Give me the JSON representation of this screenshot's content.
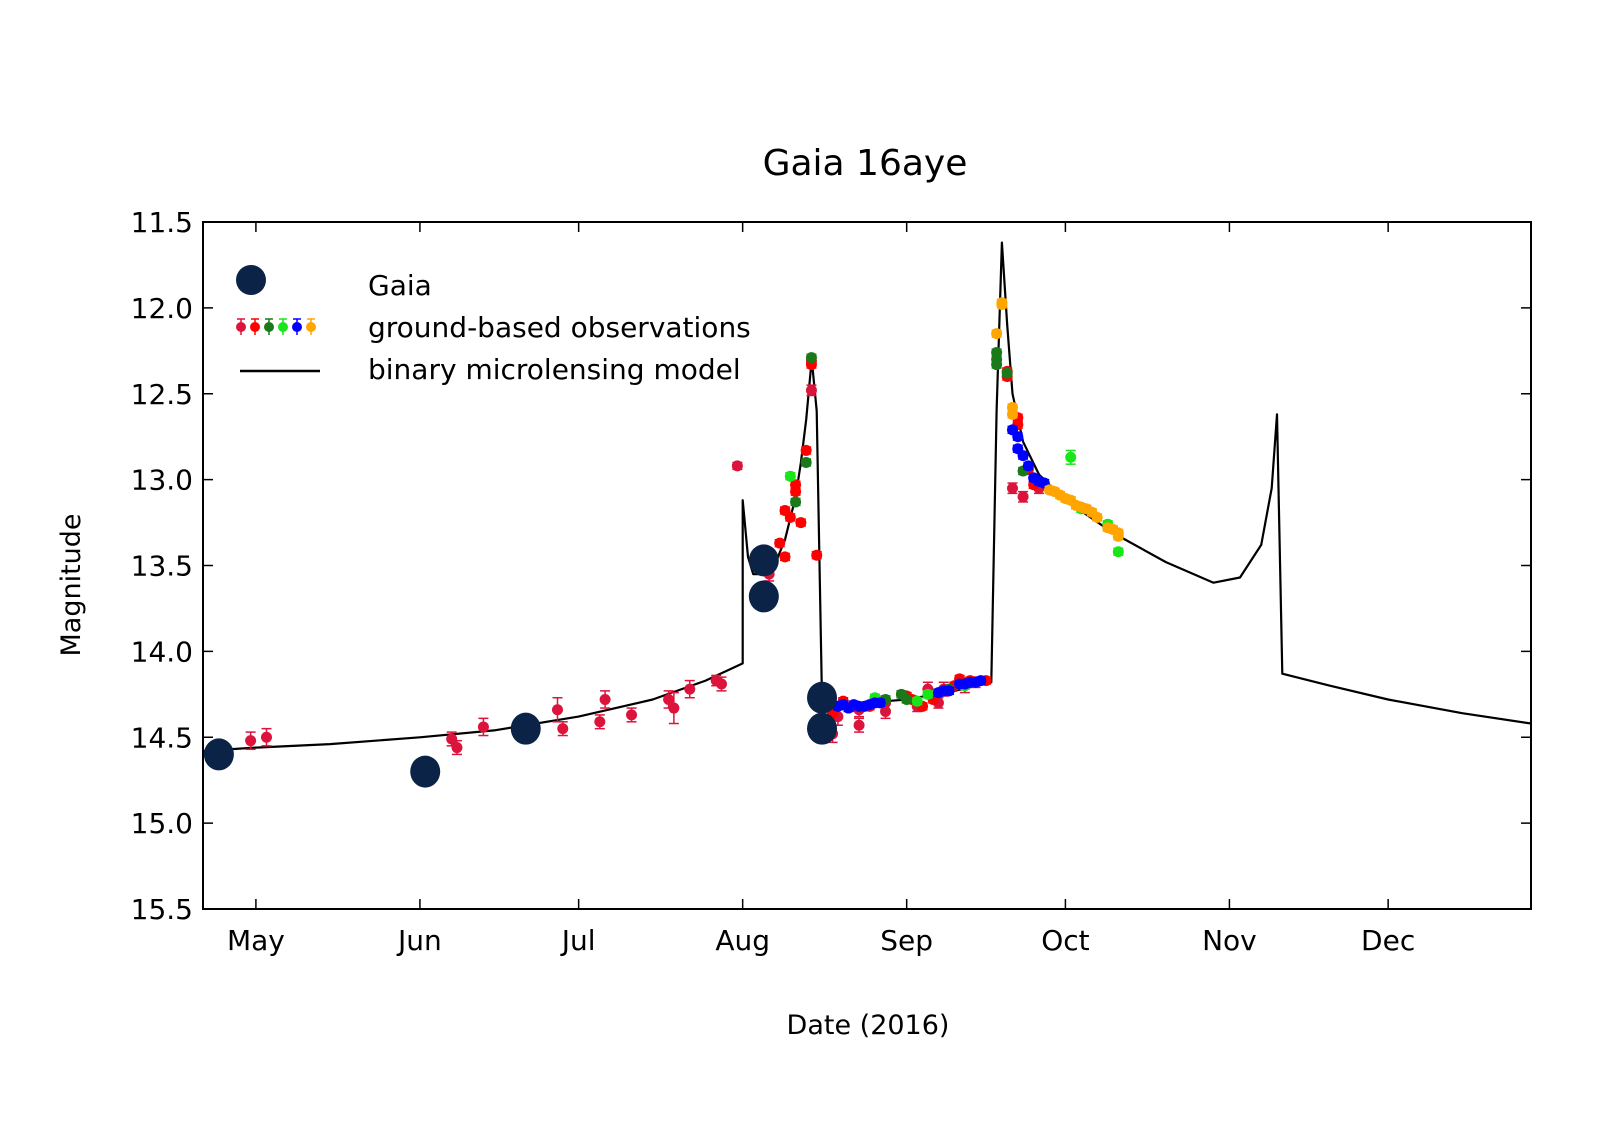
{
  "chart_data": {
    "type": "scatter",
    "title": "Gaia 16aye",
    "xlabel": "Date (2016)",
    "ylabel": "Magnitude",
    "x_axis": "date",
    "xlim": [
      "2016-04-21",
      "2016-12-28"
    ],
    "ylim": [
      15.5,
      11.5
    ],
    "y_inverted": true,
    "grid": false,
    "legend_position": "top-left",
    "x_ticks": [
      {
        "date": "2016-05-01",
        "label": "May"
      },
      {
        "date": "2016-06-01",
        "label": "Jun"
      },
      {
        "date": "2016-07-01",
        "label": "Jul"
      },
      {
        "date": "2016-08-01",
        "label": "Aug"
      },
      {
        "date": "2016-09-01",
        "label": "Sep"
      },
      {
        "date": "2016-10-01",
        "label": "Oct"
      },
      {
        "date": "2016-11-01",
        "label": "Nov"
      },
      {
        "date": "2016-12-01",
        "label": "Dec"
      }
    ],
    "y_ticks": [
      "11.5",
      "12.0",
      "12.5",
      "13.0",
      "13.5",
      "14.0",
      "14.5",
      "15.0",
      "15.5"
    ],
    "legend": {
      "gaia_label": "Gaia",
      "ground_label": "ground-based observations",
      "model_label": "binary microlensing model"
    },
    "colors": {
      "gaia": "#0b2347",
      "crimson": "#dc143c",
      "red": "#ff0000",
      "darkgreen": "#1a7a1a",
      "lime": "#19e619",
      "blue": "#0000ff",
      "orange": "#ffa500",
      "model": "#000000"
    },
    "series": [
      {
        "key": "gaia",
        "points": [
          [
            "2016-04-24",
            14.6,
            0.06
          ],
          [
            "2016-06-02",
            14.7,
            0.06
          ],
          [
            "2016-06-21",
            14.45,
            0.06
          ],
          [
            "2016-08-05",
            13.47,
            0.08
          ],
          [
            "2016-08-05",
            13.68,
            0.05
          ],
          [
            "2016-08-16",
            14.27,
            0.05
          ],
          [
            "2016-08-16",
            14.45,
            0.07
          ]
        ]
      },
      {
        "key": "crimson",
        "points": [
          [
            "2016-04-30",
            14.52,
            0.05
          ],
          [
            "2016-05-03",
            14.5,
            0.05
          ],
          [
            "2016-06-07",
            14.51,
            0.04
          ],
          [
            "2016-06-08",
            14.56,
            0.04
          ],
          [
            "2016-06-13",
            14.44,
            0.05
          ],
          [
            "2016-06-27",
            14.34,
            0.07
          ],
          [
            "2016-06-28",
            14.45,
            0.04
          ],
          [
            "2016-07-05",
            14.41,
            0.04
          ],
          [
            "2016-07-06",
            14.28,
            0.05
          ],
          [
            "2016-07-11",
            14.37,
            0.04
          ],
          [
            "2016-07-18",
            14.28,
            0.05
          ],
          [
            "2016-07-19",
            14.33,
            0.09
          ],
          [
            "2016-07-22",
            14.22,
            0.05
          ],
          [
            "2016-07-27",
            14.17,
            0.03
          ],
          [
            "2016-07-28",
            14.19,
            0.04
          ],
          [
            "2016-07-31",
            12.92,
            0.02
          ],
          [
            "2016-08-06",
            13.55,
            0.04
          ],
          [
            "2016-08-14",
            12.48,
            0.03
          ],
          [
            "2016-08-18",
            14.48,
            0.05
          ],
          [
            "2016-08-19",
            14.38,
            0.05
          ],
          [
            "2016-08-23",
            14.43,
            0.04
          ],
          [
            "2016-08-23",
            14.34,
            0.04
          ],
          [
            "2016-08-28",
            14.35,
            0.04
          ],
          [
            "2016-08-28",
            14.3,
            0.04
          ],
          [
            "2016-09-03",
            14.32,
            0.03
          ],
          [
            "2016-09-05",
            14.22,
            0.04
          ],
          [
            "2016-09-07",
            14.3,
            0.03
          ],
          [
            "2016-09-08",
            14.22,
            0.04
          ],
          [
            "2016-09-12",
            14.2,
            0.04
          ],
          [
            "2016-09-14",
            14.18,
            0.03
          ],
          [
            "2016-09-21",
            13.05,
            0.03
          ],
          [
            "2016-09-23",
            13.1,
            0.03
          ],
          [
            "2016-09-26",
            13.05,
            0.03
          ]
        ]
      },
      {
        "key": "red",
        "points": [
          [
            "2016-08-08",
            13.37,
            0.02
          ],
          [
            "2016-08-09",
            13.45,
            0.02
          ],
          [
            "2016-08-09",
            13.18,
            0.02
          ],
          [
            "2016-08-10",
            13.22,
            0.02
          ],
          [
            "2016-08-11",
            13.07,
            0.02
          ],
          [
            "2016-08-11",
            13.03,
            0.02
          ],
          [
            "2016-08-12",
            13.25,
            0.02
          ],
          [
            "2016-08-13",
            12.83,
            0.02
          ],
          [
            "2016-08-14",
            12.31,
            0.02
          ],
          [
            "2016-08-14",
            12.33,
            0.02
          ],
          [
            "2016-08-15",
            13.44,
            0.02
          ],
          [
            "2016-08-16",
            14.25,
            0.02
          ],
          [
            "2016-08-17",
            14.3,
            0.02
          ],
          [
            "2016-08-18",
            14.36,
            0.02
          ],
          [
            "2016-08-20",
            14.29,
            0.02
          ],
          [
            "2016-08-22",
            14.32,
            0.02
          ],
          [
            "2016-08-25",
            14.32,
            0.02
          ],
          [
            "2016-09-01",
            14.26,
            0.02
          ],
          [
            "2016-09-02",
            14.28,
            0.02
          ],
          [
            "2016-09-04",
            14.32,
            0.02
          ],
          [
            "2016-09-06",
            14.28,
            0.02
          ],
          [
            "2016-09-10",
            14.2,
            0.02
          ],
          [
            "2016-09-11",
            14.16,
            0.02
          ],
          [
            "2016-09-13",
            14.17,
            0.02
          ],
          [
            "2016-09-16",
            14.17,
            0.02
          ],
          [
            "2016-09-20",
            12.37,
            0.02
          ],
          [
            "2016-09-20",
            12.4,
            0.02
          ],
          [
            "2016-09-22",
            12.64,
            0.02
          ],
          [
            "2016-09-22",
            12.68,
            0.02
          ],
          [
            "2016-09-24",
            12.94,
            0.02
          ],
          [
            "2016-09-25",
            13.03,
            0.02
          ]
        ]
      },
      {
        "key": "darkgreen",
        "points": [
          [
            "2016-08-11",
            13.13,
            0.02
          ],
          [
            "2016-08-13",
            12.9,
            0.02
          ],
          [
            "2016-08-14",
            12.29,
            0.02
          ],
          [
            "2016-08-28",
            14.28,
            0.02
          ],
          [
            "2016-08-31",
            14.25,
            0.02
          ],
          [
            "2016-09-01",
            14.28,
            0.02
          ],
          [
            "2016-09-09",
            14.22,
            0.02
          ],
          [
            "2016-09-18",
            12.26,
            0.02
          ],
          [
            "2016-09-18",
            12.3,
            0.02
          ],
          [
            "2016-09-18",
            12.33,
            0.02
          ],
          [
            "2016-09-20",
            12.38,
            0.02
          ],
          [
            "2016-09-23",
            12.95,
            0.02
          ]
        ]
      },
      {
        "key": "lime",
        "points": [
          [
            "2016-08-10",
            12.98,
            0.02
          ],
          [
            "2016-08-26",
            14.27,
            0.02
          ],
          [
            "2016-09-03",
            14.29,
            0.02
          ],
          [
            "2016-09-05",
            14.25,
            0.02
          ],
          [
            "2016-09-12",
            14.2,
            0.02
          ],
          [
            "2016-10-02",
            12.87,
            0.04
          ],
          [
            "2016-10-04",
            13.17,
            0.02
          ],
          [
            "2016-10-09",
            13.26,
            0.02
          ],
          [
            "2016-10-11",
            13.42,
            0.02
          ]
        ]
      },
      {
        "key": "blue",
        "points": [
          [
            "2016-08-19",
            14.32,
            0.02
          ],
          [
            "2016-08-20",
            14.31,
            0.02
          ],
          [
            "2016-08-21",
            14.33,
            0.02
          ],
          [
            "2016-08-22",
            14.31,
            0.02
          ],
          [
            "2016-08-23",
            14.32,
            0.02
          ],
          [
            "2016-08-24",
            14.32,
            0.02
          ],
          [
            "2016-08-25",
            14.31,
            0.02
          ],
          [
            "2016-08-26",
            14.3,
            0.02
          ],
          [
            "2016-08-27",
            14.3,
            0.02
          ],
          [
            "2016-09-07",
            14.24,
            0.02
          ],
          [
            "2016-09-08",
            14.23,
            0.02
          ],
          [
            "2016-09-09",
            14.23,
            0.02
          ],
          [
            "2016-09-11",
            14.19,
            0.02
          ],
          [
            "2016-09-12",
            14.19,
            0.02
          ],
          [
            "2016-09-13",
            14.18,
            0.02
          ],
          [
            "2016-09-14",
            14.18,
            0.02
          ],
          [
            "2016-09-15",
            14.17,
            0.02
          ],
          [
            "2016-09-21",
            12.71,
            0.02
          ],
          [
            "2016-09-22",
            12.75,
            0.02
          ],
          [
            "2016-09-22",
            12.82,
            0.02
          ],
          [
            "2016-09-23",
            12.86,
            0.02
          ],
          [
            "2016-09-24",
            12.92,
            0.02
          ],
          [
            "2016-09-25",
            12.99,
            0.02
          ],
          [
            "2016-09-26",
            13.01,
            0.02
          ],
          [
            "2016-09-27",
            13.02,
            0.02
          ]
        ]
      },
      {
        "key": "orange",
        "points": [
          [
            "2016-09-18",
            12.15,
            0.02
          ],
          [
            "2016-09-19",
            11.97,
            0.02
          ],
          [
            "2016-09-19",
            11.98,
            0.02
          ],
          [
            "2016-09-21",
            12.58,
            0.02
          ],
          [
            "2016-09-21",
            12.62,
            0.02
          ],
          [
            "2016-09-28",
            13.06,
            0.02
          ],
          [
            "2016-09-29",
            13.07,
            0.02
          ],
          [
            "2016-09-30",
            13.09,
            0.02
          ],
          [
            "2016-10-01",
            13.11,
            0.02
          ],
          [
            "2016-10-02",
            13.12,
            0.02
          ],
          [
            "2016-10-03",
            13.15,
            0.02
          ],
          [
            "2016-10-04",
            13.16,
            0.02
          ],
          [
            "2016-10-05",
            13.17,
            0.02
          ],
          [
            "2016-10-06",
            13.19,
            0.02
          ],
          [
            "2016-10-07",
            13.22,
            0.02
          ],
          [
            "2016-10-09",
            13.28,
            0.02
          ],
          [
            "2016-10-10",
            13.29,
            0.02
          ],
          [
            "2016-10-11",
            13.31,
            0.02
          ],
          [
            "2016-10-11",
            13.33,
            0.02
          ]
        ]
      }
    ],
    "model_line": [
      [
        "2016-04-21",
        14.58
      ],
      [
        "2016-05-01",
        14.56
      ],
      [
        "2016-05-15",
        14.54
      ],
      [
        "2016-06-01",
        14.5
      ],
      [
        "2016-06-15",
        14.46
      ],
      [
        "2016-07-01",
        14.38
      ],
      [
        "2016-07-15",
        14.28
      ],
      [
        "2016-07-25",
        14.17
      ],
      [
        "2016-08-01",
        14.07
      ],
      [
        "2016-08-01",
        13.12
      ],
      [
        "2016-08-02",
        13.45
      ],
      [
        "2016-08-03",
        13.55
      ],
      [
        "2016-08-05",
        13.55
      ],
      [
        "2016-08-07",
        13.5
      ],
      [
        "2016-08-09",
        13.35
      ],
      [
        "2016-08-11",
        13.1
      ],
      [
        "2016-08-12",
        12.9
      ],
      [
        "2016-08-13",
        12.65
      ],
      [
        "2016-08-14",
        12.32
      ],
      [
        "2016-08-14",
        12.28
      ],
      [
        "2016-08-15",
        12.6
      ],
      [
        "2016-08-16",
        14.28
      ],
      [
        "2016-08-20",
        14.31
      ],
      [
        "2016-09-01",
        14.28
      ],
      [
        "2016-09-10",
        14.23
      ],
      [
        "2016-09-17",
        14.18
      ],
      [
        "2016-09-18",
        12.6
      ],
      [
        "2016-09-19",
        11.62
      ],
      [
        "2016-09-20",
        12.1
      ],
      [
        "2016-09-21",
        12.5
      ],
      [
        "2016-09-23",
        12.78
      ],
      [
        "2016-09-26",
        12.97
      ],
      [
        "2016-10-01",
        13.12
      ],
      [
        "2016-10-10",
        13.31
      ],
      [
        "2016-10-20",
        13.48
      ],
      [
        "2016-10-29",
        13.6
      ],
      [
        "2016-11-03",
        13.57
      ],
      [
        "2016-11-07",
        13.38
      ],
      [
        "2016-11-09",
        13.05
      ],
      [
        "2016-11-10",
        12.62
      ],
      [
        "2016-11-11",
        14.13
      ],
      [
        "2016-11-20",
        14.2
      ],
      [
        "2016-12-01",
        14.28
      ],
      [
        "2016-12-15",
        14.36
      ],
      [
        "2016-12-28",
        14.42
      ]
    ]
  }
}
